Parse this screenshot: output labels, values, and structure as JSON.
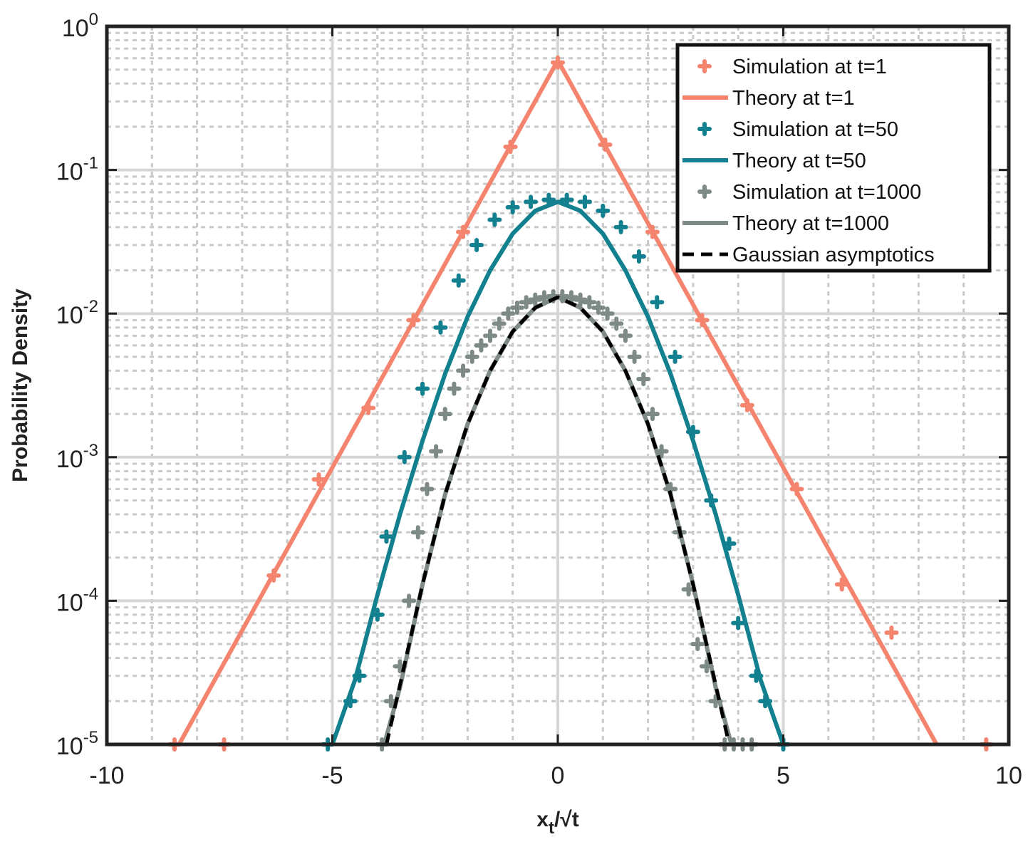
{
  "chart_data": {
    "type": "line",
    "xlabel": {
      "main": "x",
      "sub": "t",
      "rest": "/√t"
    },
    "ylabel": "Probability Density",
    "xlim": [
      -10,
      10
    ],
    "ylim": [
      1e-05,
      1
    ],
    "yscale": "log",
    "grid": true,
    "legend_position": "top-right",
    "x_ticks": [
      -10,
      -5,
      0,
      5,
      10
    ],
    "x_tick_labels": [
      "-10",
      "-5",
      "0",
      "5",
      "10"
    ],
    "y_ticks": [
      1e-05,
      0.0001,
      0.001,
      0.01,
      0.1,
      1
    ],
    "y_tick_labels": [
      {
        "base": "10",
        "exp": "-5"
      },
      {
        "base": "10",
        "exp": "-4"
      },
      {
        "base": "10",
        "exp": "-3"
      },
      {
        "base": "10",
        "exp": "-2"
      },
      {
        "base": "10",
        "exp": "-1"
      },
      {
        "base": "10",
        "exp": "0"
      }
    ],
    "series": [
      {
        "name": "Simulation at t=1",
        "style": "markers",
        "color": "#f4846e",
        "x": [
          -8.5,
          -7.4,
          -6.3,
          -5.3,
          -4.2,
          -3.2,
          -2.1,
          -1.05,
          0,
          1.05,
          2.1,
          3.2,
          4.2,
          5.3,
          6.3,
          7.4,
          9.5
        ],
        "y": [
          1e-05,
          1e-05,
          0.00015,
          0.0007,
          0.0022,
          0.009,
          0.037,
          0.145,
          0.56,
          0.15,
          0.037,
          0.009,
          0.0023,
          0.0006,
          0.00013,
          6e-05,
          1e-05
        ]
      },
      {
        "name": "Theory at t=1",
        "style": "line",
        "color": "#f4846e",
        "x": [
          -8.4,
          0,
          8.4
        ],
        "y": [
          1e-05,
          0.58,
          1e-05
        ]
      },
      {
        "name": "Simulation at t=50",
        "style": "markers",
        "color": "#13808f",
        "x": [
          -5.1,
          -4.6,
          -4.4,
          -4.0,
          -3.8,
          -3.4,
          -3.0,
          -2.6,
          -2.2,
          -1.8,
          -1.4,
          -1.0,
          -0.6,
          -0.2,
          0.2,
          0.6,
          1.0,
          1.4,
          1.8,
          2.2,
          2.6,
          3.0,
          3.4,
          3.8,
          4.0,
          4.4,
          4.6,
          5.0
        ],
        "y": [
          1e-05,
          2e-05,
          3e-05,
          8e-05,
          0.00028,
          0.001,
          0.003,
          0.008,
          0.017,
          0.03,
          0.045,
          0.055,
          0.06,
          0.062,
          0.062,
          0.06,
          0.052,
          0.04,
          0.025,
          0.012,
          0.005,
          0.0015,
          0.0005,
          0.00025,
          7e-05,
          3e-05,
          2e-05,
          1e-05
        ]
      },
      {
        "name": "Theory at t=50",
        "style": "line",
        "color": "#13808f",
        "x": [
          -5.0,
          -4.5,
          -4.0,
          -3.5,
          -3.0,
          -2.5,
          -2.0,
          -1.5,
          -1.0,
          -0.5,
          0,
          0.5,
          1.0,
          1.5,
          2.0,
          2.5,
          3.0,
          3.5,
          4.0,
          4.5,
          5.0
        ],
        "y": [
          1e-05,
          2.8e-05,
          0.00011,
          0.0004,
          0.0013,
          0.0038,
          0.0095,
          0.02,
          0.036,
          0.052,
          0.06,
          0.052,
          0.036,
          0.02,
          0.0095,
          0.0038,
          0.0013,
          0.0004,
          0.00011,
          2.8e-05,
          1e-05
        ]
      },
      {
        "name": "Simulation at t=1000",
        "style": "markers",
        "color": "#7e8a86",
        "x": [
          -3.9,
          -3.7,
          -3.5,
          -3.3,
          -3.1,
          -2.9,
          -2.7,
          -2.5,
          -2.3,
          -2.1,
          -1.9,
          -1.7,
          -1.5,
          -1.3,
          -1.1,
          -0.9,
          -0.7,
          -0.5,
          -0.3,
          -0.1,
          0.1,
          0.3,
          0.5,
          0.7,
          0.9,
          1.1,
          1.3,
          1.5,
          1.7,
          1.9,
          2.1,
          2.3,
          2.5,
          2.7,
          2.9,
          3.1,
          3.3,
          3.5,
          3.7,
          3.9,
          4.1,
          4.3
        ],
        "y": [
          1e-05,
          2e-05,
          3.5e-05,
          0.0001,
          0.0003,
          0.0006,
          0.0011,
          0.002,
          0.003,
          0.004,
          0.005,
          0.006,
          0.007,
          0.0085,
          0.01,
          0.011,
          0.012,
          0.0125,
          0.013,
          0.0132,
          0.0132,
          0.013,
          0.0125,
          0.012,
          0.011,
          0.01,
          0.0085,
          0.007,
          0.005,
          0.0035,
          0.002,
          0.0011,
          0.0006,
          0.0003,
          0.00012,
          5e-05,
          3.5e-05,
          2e-05,
          1e-05,
          1e-05,
          1e-05,
          1e-05
        ]
      },
      {
        "name": "Theory at t=1000",
        "style": "line",
        "color": "#7e8a86",
        "x": [
          -3.85,
          -3.5,
          -3.0,
          -2.5,
          -2.0,
          -1.5,
          -1.0,
          -0.5,
          0,
          0.5,
          1.0,
          1.5,
          2.0,
          2.5,
          3.0,
          3.5,
          3.85
        ],
        "y": [
          1e-05,
          2.5e-05,
          0.00013,
          0.00055,
          0.0017,
          0.004,
          0.0075,
          0.011,
          0.013,
          0.011,
          0.0075,
          0.004,
          0.0017,
          0.00055,
          0.00013,
          2.5e-05,
          1e-05
        ]
      },
      {
        "name": "Gaussian asymptotics",
        "style": "dashed",
        "color": "#000000",
        "x": [
          -3.8,
          -3.5,
          -3.0,
          -2.5,
          -2.0,
          -1.5,
          -1.0,
          -0.5,
          0,
          0.5,
          1.0,
          1.5,
          2.0,
          2.5,
          3.0,
          3.5,
          3.8
        ],
        "y": [
          1e-05,
          2.6e-05,
          0.00013,
          0.00055,
          0.0017,
          0.004,
          0.0075,
          0.011,
          0.013,
          0.011,
          0.0075,
          0.004,
          0.0017,
          0.00055,
          0.00013,
          2.6e-05,
          1e-05
        ]
      }
    ]
  }
}
